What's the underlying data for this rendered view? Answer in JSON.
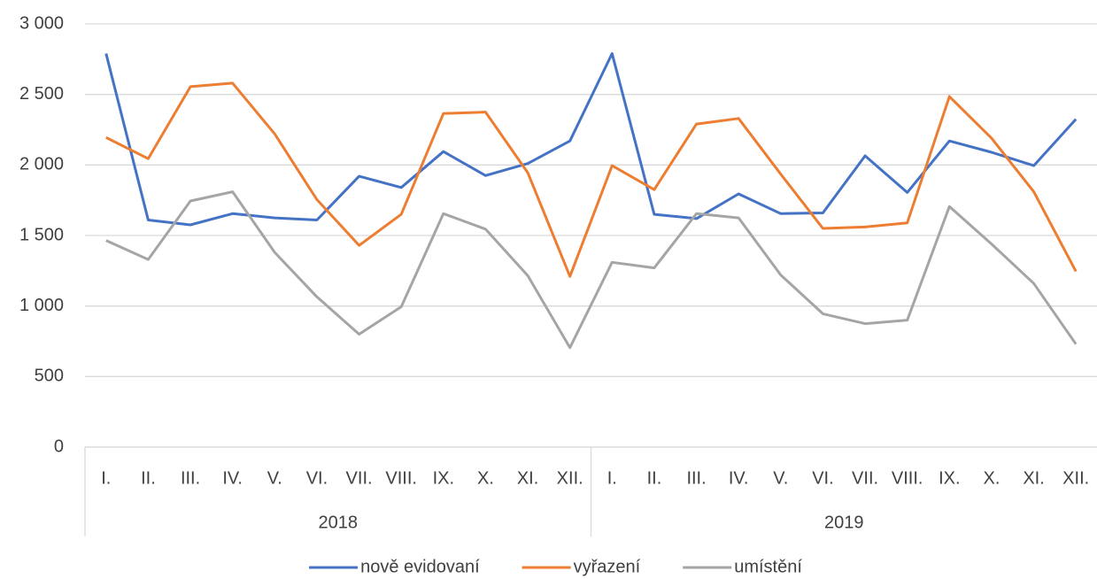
{
  "chart_data": {
    "type": "line",
    "categories": [
      "I.",
      "II.",
      "III.",
      "IV.",
      "V.",
      "VI.",
      "VII.",
      "VIII.",
      "IX.",
      "X.",
      "XI.",
      "XII.",
      "I.",
      "II.",
      "III.",
      "IV.",
      "V.",
      "VI.",
      "VII.",
      "VIII.",
      "IX.",
      "X.",
      "XI.",
      "XII."
    ],
    "groups": [
      "2018",
      "2019"
    ],
    "series": [
      {
        "name": "nově evidovaní",
        "color": "#4472c4",
        "values": [
          2790,
          1610,
          1575,
          1655,
          1625,
          1610,
          1920,
          1840,
          2095,
          1925,
          2010,
          2170,
          2790,
          1650,
          1620,
          1795,
          1655,
          1660,
          2065,
          1805,
          2170,
          2090,
          1995,
          2325
        ]
      },
      {
        "name": "vyřazení",
        "color": "#ed7d31",
        "values": [
          2195,
          2045,
          2555,
          2580,
          2220,
          1755,
          1430,
          1650,
          2365,
          2375,
          1945,
          1210,
          1995,
          1825,
          2290,
          2330,
          1935,
          1550,
          1560,
          1590,
          2485,
          2190,
          1810,
          1245
        ]
      },
      {
        "name": "umístění",
        "color": "#a5a5a5",
        "values": [
          1465,
          1330,
          1745,
          1810,
          1380,
          1065,
          800,
          995,
          1655,
          1545,
          1215,
          705,
          1310,
          1270,
          1655,
          1625,
          1220,
          945,
          875,
          900,
          1705,
          1440,
          1160,
          730
        ]
      }
    ],
    "ylim": [
      0,
      3000
    ],
    "yticks": [
      0,
      500,
      {
        "value": 1000,
        "label": "1 000"
      },
      {
        "value": 1500,
        "label": "1 500"
      },
      {
        "value": 2000,
        "label": "2 000"
      },
      {
        "value": 2500,
        "label": "2 500"
      },
      {
        "value": 3000,
        "label": "3 000"
      }
    ],
    "grid": true,
    "legend": "bottom"
  }
}
